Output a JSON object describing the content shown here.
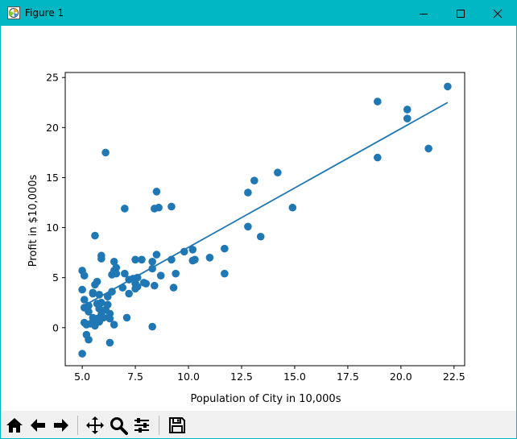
{
  "window": {
    "title": "Figure 1",
    "titlebar_color": "#00b7c3"
  },
  "toolbar": {
    "buttons": [
      "home-icon",
      "back-arrow-icon",
      "forward-arrow-icon",
      "pan-icon",
      "zoom-icon",
      "configure-subplots-icon",
      "save-icon"
    ]
  },
  "chart_data": {
    "type": "scatter",
    "title": "",
    "xlabel": "Population of City in 10,000s",
    "ylabel": "Profit in $10,000s",
    "xlim": [
      4.2,
      23.0
    ],
    "ylim": [
      -3.8,
      25.5
    ],
    "x_ticks": [
      5.0,
      7.5,
      10.0,
      12.5,
      15.0,
      17.5,
      20.0,
      22.5
    ],
    "x_tick_labels": [
      "5.0",
      "7.5",
      "10.0",
      "12.5",
      "15.0",
      "17.5",
      "20.0",
      "22.5"
    ],
    "y_ticks": [
      0,
      5,
      10,
      15,
      20,
      25
    ],
    "y_tick_labels": [
      "0",
      "5",
      "10",
      "15",
      "20",
      "25"
    ],
    "grid": false,
    "series": [
      {
        "kind": "scatter",
        "color": "#1f77b4",
        "points": [
          [
            22.2,
            24.1
          ],
          [
            18.9,
            22.6
          ],
          [
            20.3,
            21.8
          ],
          [
            20.3,
            20.9
          ],
          [
            21.3,
            17.9
          ],
          [
            18.9,
            17.0
          ],
          [
            6.1,
            17.5
          ],
          [
            14.2,
            15.5
          ],
          [
            13.1,
            14.7
          ],
          [
            8.5,
            13.6
          ],
          [
            12.8,
            13.5
          ],
          [
            14.9,
            12.0
          ],
          [
            8.4,
            11.9
          ],
          [
            8.6,
            12.0
          ],
          [
            9.2,
            12.1
          ],
          [
            7.0,
            11.9
          ],
          [
            12.8,
            10.1
          ],
          [
            13.4,
            9.1
          ],
          [
            5.6,
            9.2
          ],
          [
            9.8,
            7.6
          ],
          [
            10.2,
            7.8
          ],
          [
            11.7,
            7.9
          ],
          [
            10.2,
            6.7
          ],
          [
            10.3,
            6.8
          ],
          [
            11.0,
            7.0
          ],
          [
            9.2,
            6.8
          ],
          [
            8.5,
            7.3
          ],
          [
            7.5,
            6.8
          ],
          [
            7.8,
            6.8
          ],
          [
            8.3,
            6.6
          ],
          [
            5.9,
            7.2
          ],
          [
            5.9,
            6.9
          ],
          [
            6.5,
            6.6
          ],
          [
            6.6,
            6.0
          ],
          [
            8.3,
            5.9
          ],
          [
            8.7,
            5.2
          ],
          [
            9.4,
            5.4
          ],
          [
            11.7,
            5.4
          ],
          [
            9.3,
            4.0
          ],
          [
            8.4,
            4.2
          ],
          [
            8.0,
            4.4
          ],
          [
            7.6,
            4.1
          ],
          [
            7.9,
            4.5
          ],
          [
            7.5,
            4.4
          ],
          [
            7.6,
            5.0
          ],
          [
            7.2,
            4.8
          ],
          [
            7.4,
            4.9
          ],
          [
            7.0,
            5.4
          ],
          [
            6.4,
            5.3
          ],
          [
            6.5,
            5.7
          ],
          [
            6.6,
            5.4
          ],
          [
            6.9,
            4.0
          ],
          [
            7.2,
            3.4
          ],
          [
            7.5,
            3.9
          ],
          [
            5.0,
            5.7
          ],
          [
            5.1,
            5.2
          ],
          [
            5.0,
            3.8
          ],
          [
            5.1,
            2.8
          ],
          [
            5.1,
            2.0
          ],
          [
            5.3,
            2.2
          ],
          [
            5.3,
            1.6
          ],
          [
            5.5,
            3.4
          ],
          [
            5.6,
            4.3
          ],
          [
            5.7,
            4.6
          ],
          [
            5.8,
            3.3
          ],
          [
            5.7,
            2.4
          ],
          [
            5.8,
            1.9
          ],
          [
            5.9,
            1.3
          ],
          [
            6.0,
            1.0
          ],
          [
            5.7,
            0.9
          ],
          [
            5.5,
            1.0
          ],
          [
            5.6,
            0.6
          ],
          [
            5.6,
            0.2
          ],
          [
            5.4,
            0.4
          ],
          [
            5.1,
            0.5
          ],
          [
            5.2,
            0.3
          ],
          [
            5.2,
            -0.7
          ],
          [
            5.3,
            -1.2
          ],
          [
            5.0,
            -2.6
          ],
          [
            6.3,
            -1.5
          ],
          [
            6.3,
            1.4
          ],
          [
            6.2,
            2.3
          ],
          [
            6.2,
            3.1
          ],
          [
            6.4,
            3.6
          ],
          [
            6.3,
            0.9
          ],
          [
            6.5,
            0.3
          ],
          [
            7.1,
            1.0
          ],
          [
            8.3,
            0.1
          ],
          [
            5.5,
            3.5
          ],
          [
            5.9,
            2.5
          ],
          [
            6.1,
            1.8
          ],
          [
            5.8,
            0.6
          ]
        ]
      },
      {
        "kind": "line",
        "color": "#1f77b4",
        "points": [
          [
            5.0,
            2.1
          ],
          [
            22.2,
            22.5
          ]
        ]
      }
    ]
  }
}
